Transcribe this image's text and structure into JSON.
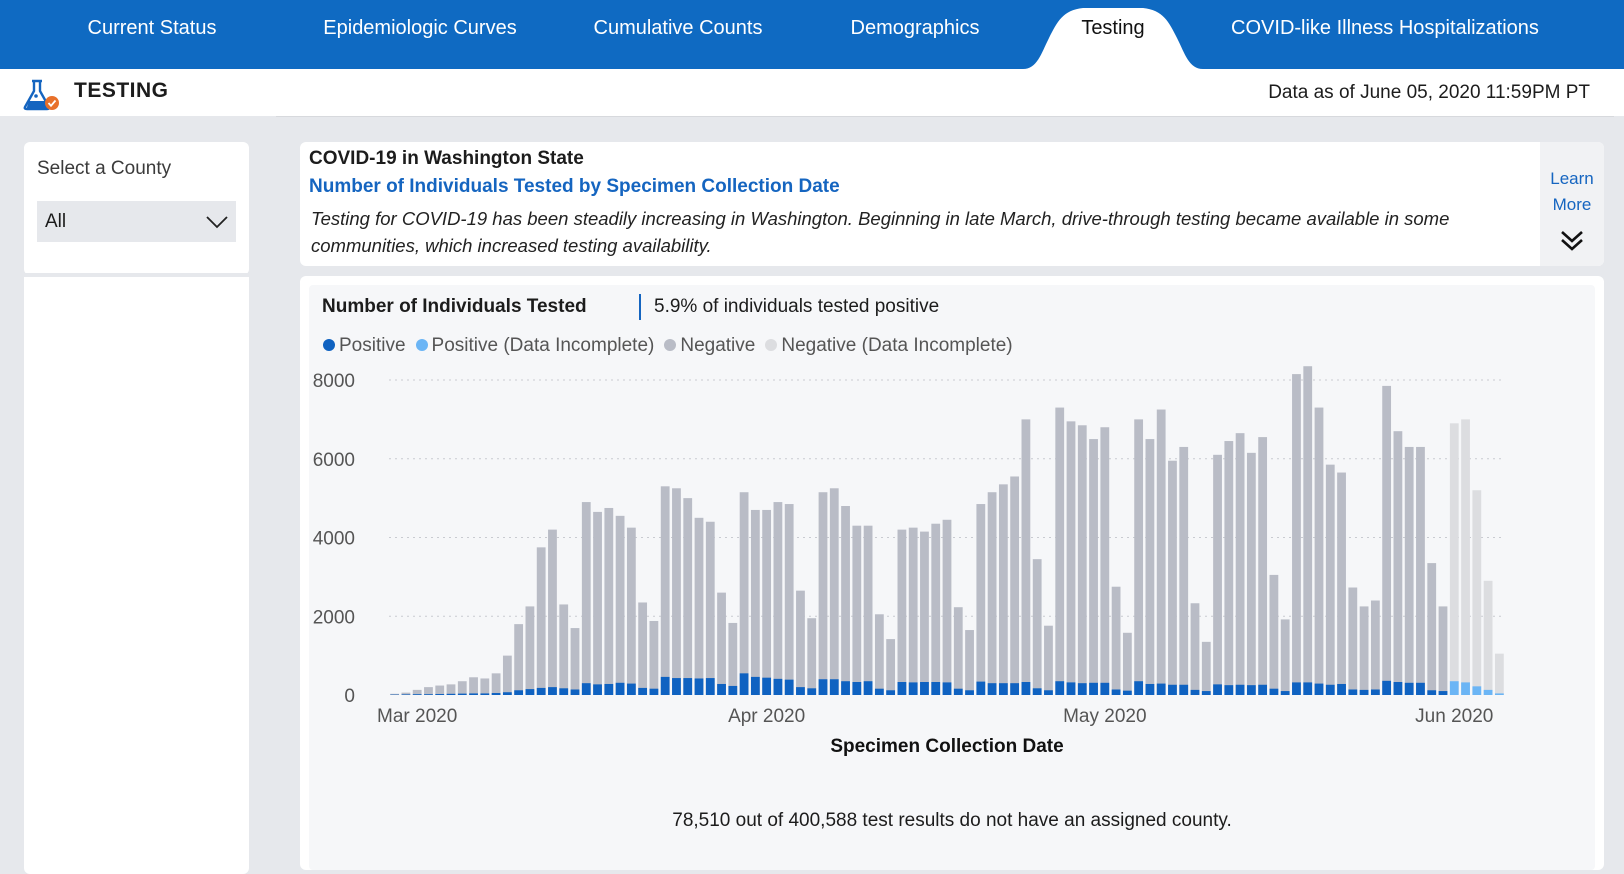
{
  "nav": {
    "tabs": [
      {
        "label": "Current Status"
      },
      {
        "label": "Epidemiologic Curves"
      },
      {
        "label": "Cumulative Counts"
      },
      {
        "label": "Demographics"
      },
      {
        "label": "Testing",
        "active": true
      },
      {
        "label": "COVID-like Illness Hospitalizations"
      }
    ],
    "color": "#0f6ac2"
  },
  "header": {
    "icon": "flask-check-icon",
    "title": "TESTING",
    "data_as_of": "Data as of June 05, 2020 11:59PM PT"
  },
  "sidebar": {
    "county_label": "Select a County",
    "county_value": "All"
  },
  "info": {
    "heading": "COVID-19 in Washington State",
    "subheading": "Number of Individuals Tested by Specimen Collection Date",
    "description": "Testing for COVID-19 has been steadily increasing in Washington. Beginning in late March, drive-through testing became available in some communities, which increased testing availability.",
    "learn_more_line1": "Learn",
    "learn_more_line2": "More"
  },
  "chart_card": {
    "title": "Number of Individuals Tested",
    "positive_rate": "5.9% of individuals tested positive",
    "footnote": "78,510 out of 400,588 test results do not have an assigned county."
  },
  "chart_data": {
    "type": "bar",
    "stacked": true,
    "xlabel": "Specimen Collection Date",
    "ylabel": "",
    "ylim": [
      0,
      8000
    ],
    "yticks": [
      "0",
      "2000",
      "4000",
      "6000",
      "8000"
    ],
    "xticks": [
      "Mar 2020",
      "Apr 2020",
      "May 2020",
      "Jun 2020"
    ],
    "xtick_dates": [
      "2020-03-01",
      "2020-04-01",
      "2020-05-01",
      "2020-06-01"
    ],
    "grid": true,
    "legend_position": "top-left",
    "start_date": "2020-02-28",
    "series": [
      {
        "name": "Positive",
        "color": "#0f62c1"
      },
      {
        "name": "Positive (Data Incomplete)",
        "color": "#6bb5f5"
      },
      {
        "name": "Negative",
        "color": "#b9bcc6"
      },
      {
        "name": "Negative (Data Incomplete)",
        "color": "#dcdde0"
      }
    ],
    "totals": [
      30,
      60,
      130,
      200,
      240,
      270,
      350,
      450,
      420,
      550,
      1000,
      1800,
      2250,
      3750,
      4200,
      2300,
      1700,
      4900,
      4650,
      4750,
      4550,
      4250,
      2350,
      1880,
      5300,
      5250,
      5000,
      4500,
      4400,
      2600,
      1830,
      5150,
      4700,
      4700,
      4900,
      4850,
      2650,
      1950,
      5150,
      5250,
      4800,
      4300,
      4300,
      2050,
      1420,
      4200,
      4250,
      4150,
      4350,
      4450,
      2230,
      1650,
      4850,
      5150,
      5350,
      5550,
      7000,
      3450,
      1760,
      7300,
      6950,
      6850,
      6500,
      6800,
      2750,
      1580,
      7000,
      6500,
      7250,
      5950,
      6300,
      2330,
      1350,
      6100,
      6450,
      6650,
      6150,
      6550,
      3050,
      1920,
      8150,
      8350,
      7300,
      5850,
      5650,
      2730,
      2250,
      2400,
      7850,
      6700,
      6300,
      6300,
      3350,
      2250,
      6900,
      7000,
      5200,
      2900,
      1050
    ],
    "positives": [
      10,
      15,
      20,
      20,
      25,
      30,
      35,
      40,
      40,
      50,
      70,
      120,
      150,
      180,
      200,
      170,
      140,
      300,
      270,
      280,
      310,
      290,
      180,
      160,
      460,
      430,
      430,
      420,
      430,
      280,
      230,
      550,
      460,
      440,
      410,
      390,
      200,
      170,
      400,
      400,
      350,
      330,
      350,
      160,
      120,
      330,
      320,
      330,
      330,
      320,
      160,
      120,
      340,
      300,
      300,
      300,
      330,
      170,
      120,
      350,
      320,
      300,
      310,
      310,
      140,
      110,
      350,
      280,
      290,
      260,
      260,
      130,
      100,
      270,
      250,
      260,
      250,
      260,
      160,
      100,
      320,
      320,
      290,
      260,
      280,
      140,
      130,
      140,
      360,
      330,
      310,
      310,
      120,
      100,
      350,
      320,
      220,
      130,
      40
    ],
    "incomplete_from_index": 94
  }
}
